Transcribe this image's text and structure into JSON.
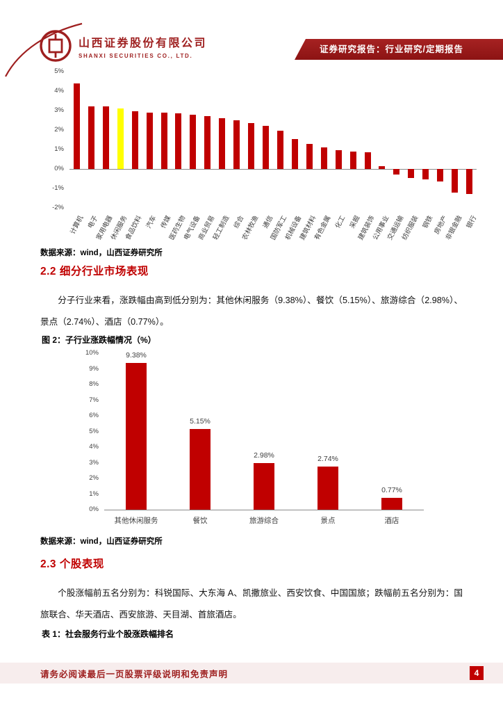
{
  "header": {
    "company_cn": "山西证券股份有限公司",
    "company_en": "SHANXI SECURITIES CO., LTD.",
    "banner": "证券研究报告：行业研究/定期报告"
  },
  "chart1_source": "数据来源：wind，山西证券研究所",
  "chart2_source": "数据来源：wind，山西证券研究所",
  "section_2_2": {
    "heading": "2.2 细分行业市场表现",
    "paragraph": "分子行业来看，涨跌幅由高到低分别为：其他休闲服务（9.38%）、餐饮（5.15%）、旅游综合（2.98%）、景点（2.74%）、酒店（0.77%）。",
    "figure_caption": "图 2：子行业涨跌幅情况（%）"
  },
  "section_2_3": {
    "heading": "2.3 个股表现",
    "paragraph": "个股涨幅前五名分别为：科锐国际、大东海 A、凯撒旅业、西安饮食、中国国旅；跌幅前五名分别为：国旅联合、华天酒店、西安旅游、天目湖、首旅酒店。",
    "table_caption": "表 1：社会服务行业个股涨跌幅排名"
  },
  "footer": {
    "disclaimer": "请务必阅读最后一页股票评级说明和免责声明",
    "page_number": "4"
  },
  "colors": {
    "brand_red": "#9e1f1f",
    "bar_red": "#c00000",
    "highlight_yellow": "#ffff00",
    "banner_bg": "#9a1b1b",
    "footer_band": "#f7eded"
  },
  "chart_data": [
    {
      "type": "bar",
      "title": "",
      "categories": [
        "计算机",
        "电子",
        "家用电器",
        "休闲服务",
        "食品饮料",
        "汽车",
        "传媒",
        "医药生物",
        "电气设备",
        "商业贸易",
        "轻工制造",
        "综合",
        "农林牧渔",
        "通信",
        "国防军工",
        "机械设备",
        "建筑材料",
        "有色金属",
        "化工",
        "采掘",
        "建筑装饰",
        "公用事业",
        "交通运输",
        "纺织服装",
        "钢铁",
        "房地产",
        "非银金融",
        "银行"
      ],
      "values": [
        4.4,
        3.2,
        3.2,
        3.1,
        2.95,
        2.9,
        2.9,
        2.85,
        2.8,
        2.7,
        2.6,
        2.5,
        2.35,
        2.2,
        1.95,
        1.55,
        1.3,
        1.1,
        0.95,
        0.9,
        0.85,
        0.15,
        -0.3,
        -0.45,
        -0.55,
        -0.65,
        -1.2,
        -1.3
      ],
      "highlight": "休闲服务",
      "xlabel": "",
      "ylabel": "",
      "ylim": [
        -2,
        5
      ],
      "ytick_suffix": "%",
      "grid": false,
      "legend": false
    },
    {
      "type": "bar",
      "title": "子行业涨跌幅情况（%）",
      "categories": [
        "其他休闲服务",
        "餐饮",
        "旅游综合",
        "景点",
        "酒店"
      ],
      "values": [
        9.38,
        5.15,
        2.98,
        2.74,
        0.77
      ],
      "value_labels": [
        "9.38%",
        "5.15%",
        "2.98%",
        "2.74%",
        "0.77%"
      ],
      "xlabel": "",
      "ylabel": "",
      "ylim": [
        0,
        10
      ],
      "ytick_suffix": "%",
      "grid": false,
      "legend": false
    }
  ]
}
